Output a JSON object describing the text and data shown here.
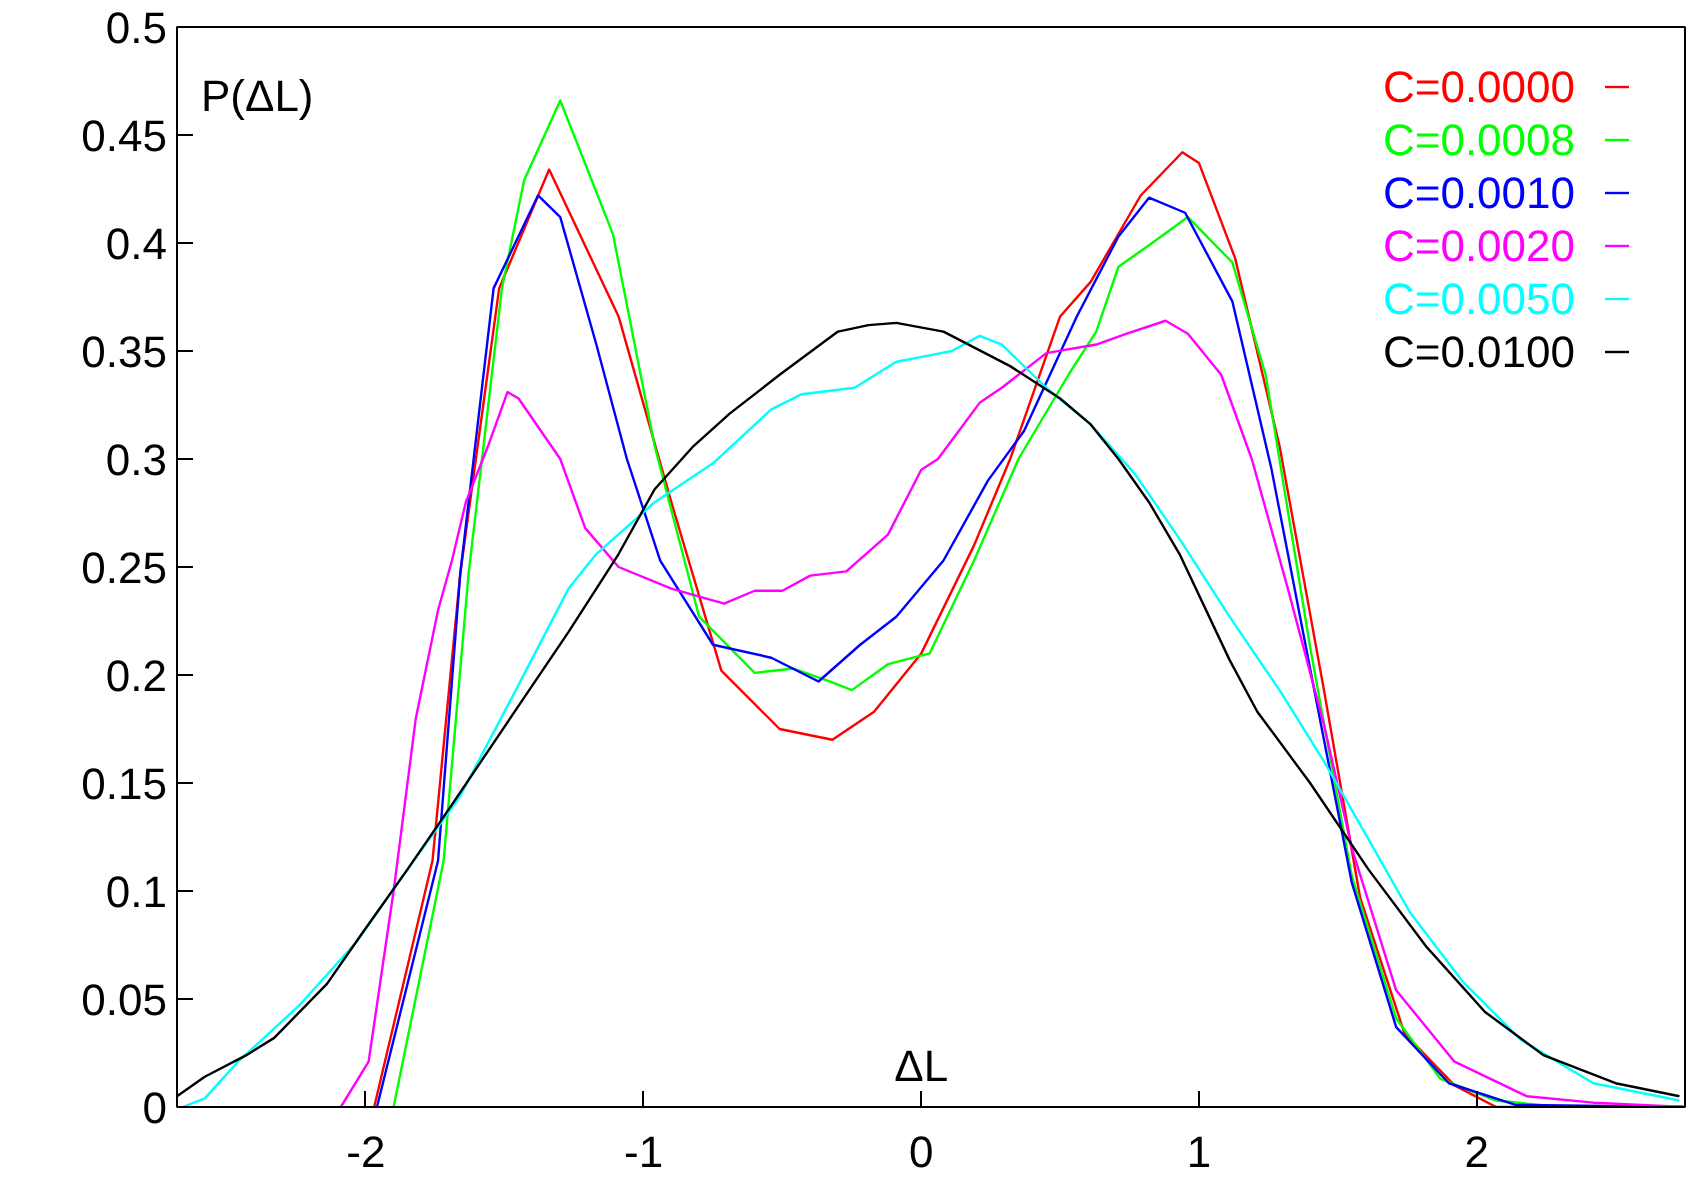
{
  "chart_data": {
    "type": "line",
    "xlabel": "ΔL",
    "ylabel": "P(ΔL)",
    "xlim": [
      -2.68,
      2.75
    ],
    "ylim": [
      0,
      0.5
    ],
    "xticks": [
      -2,
      -1,
      0,
      1,
      2
    ],
    "yticks": [
      0,
      0.05,
      0.1,
      0.15,
      0.2,
      0.25,
      0.3,
      0.35,
      0.4,
      0.45,
      0.5
    ],
    "grid": false,
    "legend": "top right",
    "marker": "none",
    "line_style": "solid",
    "series": [
      {
        "name": "C=0.0000",
        "color": "#ff0000",
        "x": [
          -1.97,
          -1.76,
          -1.66,
          -1.52,
          -1.34,
          -1.09,
          -0.9,
          -0.72,
          -0.51,
          -0.32,
          -0.17,
          0.0,
          0.19,
          0.32,
          0.5,
          0.61,
          0.79,
          0.94,
          1.0,
          1.13,
          1.29,
          1.45,
          1.58,
          1.74,
          1.92,
          2.07,
          2.75
        ],
        "values": [
          0.0,
          0.114,
          0.247,
          0.379,
          0.434,
          0.366,
          0.28,
          0.202,
          0.175,
          0.17,
          0.183,
          0.21,
          0.26,
          0.3,
          0.366,
          0.382,
          0.422,
          0.442,
          0.437,
          0.393,
          0.306,
          0.193,
          0.097,
          0.034,
          0.01,
          0.0,
          0.0
        ]
      },
      {
        "name": "C=0.0008",
        "color": "#00ff00",
        "x": [
          -1.9,
          -1.72,
          -1.63,
          -1.51,
          -1.43,
          -1.3,
          -1.11,
          -0.96,
          -0.8,
          -0.6,
          -0.46,
          -0.33,
          -0.25,
          -0.12,
          0.03,
          0.19,
          0.35,
          0.53,
          0.63,
          0.71,
          0.82,
          0.96,
          1.12,
          1.24,
          1.4,
          1.55,
          1.71,
          1.87,
          2.07,
          2.3,
          2.75
        ],
        "values": [
          0.0,
          0.114,
          0.247,
          0.379,
          0.429,
          0.466,
          0.404,
          0.306,
          0.227,
          0.201,
          0.203,
          0.197,
          0.193,
          0.205,
          0.21,
          0.253,
          0.3,
          0.339,
          0.359,
          0.389,
          0.399,
          0.412,
          0.391,
          0.339,
          0.213,
          0.107,
          0.041,
          0.013,
          0.003,
          0.0,
          0.0
        ]
      },
      {
        "name": "C=0.0010",
        "color": "#0000ff",
        "x": [
          -1.96,
          -1.74,
          -1.66,
          -1.54,
          -1.38,
          -1.3,
          -1.17,
          -1.06,
          -0.94,
          -0.75,
          -0.54,
          -0.37,
          -0.22,
          -0.09,
          0.08,
          0.24,
          0.37,
          0.56,
          0.71,
          0.82,
          0.95,
          1.12,
          1.26,
          1.4,
          1.55,
          1.71,
          1.9,
          2.14,
          2.75
        ],
        "values": [
          0.0,
          0.114,
          0.247,
          0.379,
          0.422,
          0.412,
          0.353,
          0.3,
          0.253,
          0.214,
          0.208,
          0.197,
          0.214,
          0.227,
          0.253,
          0.29,
          0.313,
          0.366,
          0.403,
          0.421,
          0.414,
          0.373,
          0.296,
          0.203,
          0.104,
          0.037,
          0.011,
          0.001,
          0.0
        ]
      },
      {
        "name": "C=0.0020",
        "color": "#ff00ff",
        "x": [
          -2.09,
          -1.99,
          -1.9,
          -1.82,
          -1.74,
          -1.69,
          -1.64,
          -1.56,
          -1.49,
          -1.45,
          -1.3,
          -1.21,
          -1.09,
          -0.9,
          -0.71,
          -0.6,
          -0.5,
          -0.4,
          -0.27,
          -0.12,
          0.0,
          0.06,
          0.21,
          0.29,
          0.45,
          0.63,
          0.74,
          0.88,
          0.96,
          1.08,
          1.19,
          1.32,
          1.45,
          1.55,
          1.71,
          1.92,
          2.18,
          2.42,
          2.75
        ],
        "values": [
          0.0,
          0.021,
          0.1,
          0.18,
          0.23,
          0.253,
          0.28,
          0.306,
          0.331,
          0.328,
          0.3,
          0.268,
          0.25,
          0.24,
          0.233,
          0.239,
          0.239,
          0.246,
          0.248,
          0.265,
          0.295,
          0.3,
          0.326,
          0.333,
          0.349,
          0.353,
          0.358,
          0.364,
          0.358,
          0.339,
          0.3,
          0.24,
          0.177,
          0.12,
          0.054,
          0.021,
          0.005,
          0.002,
          0.0
        ]
      },
      {
        "name": "C=0.0050",
        "color": "#00ffff",
        "x": [
          -2.66,
          -2.58,
          -2.46,
          -2.24,
          -2.03,
          -1.85,
          -1.66,
          -1.46,
          -1.27,
          -1.17,
          -0.96,
          -0.75,
          -0.54,
          -0.43,
          -0.24,
          -0.09,
          0.03,
          0.11,
          0.21,
          0.29,
          0.45,
          0.61,
          0.77,
          0.93,
          1.11,
          1.29,
          1.45,
          1.61,
          1.76,
          1.95,
          2.16,
          2.42,
          2.73
        ],
        "values": [
          0.0,
          0.004,
          0.021,
          0.047,
          0.077,
          0.11,
          0.144,
          0.193,
          0.24,
          0.256,
          0.28,
          0.298,
          0.323,
          0.33,
          0.333,
          0.345,
          0.348,
          0.35,
          0.357,
          0.353,
          0.333,
          0.316,
          0.293,
          0.263,
          0.227,
          0.193,
          0.16,
          0.124,
          0.09,
          0.058,
          0.031,
          0.011,
          0.003
        ]
      },
      {
        "name": "C=0.0100",
        "color": "#000000",
        "x": [
          -2.68,
          -2.58,
          -2.43,
          -2.33,
          -2.14,
          -2.01,
          -1.85,
          -1.69,
          -1.48,
          -1.27,
          -1.09,
          -0.96,
          -0.82,
          -0.69,
          -0.51,
          -0.3,
          -0.19,
          -0.09,
          0.08,
          0.32,
          0.5,
          0.61,
          0.71,
          0.82,
          0.93,
          1.11,
          1.21,
          1.4,
          1.61,
          1.82,
          2.03,
          2.24,
          2.5,
          2.73
        ],
        "values": [
          0.005,
          0.014,
          0.024,
          0.032,
          0.057,
          0.081,
          0.11,
          0.14,
          0.18,
          0.22,
          0.256,
          0.286,
          0.306,
          0.321,
          0.339,
          0.359,
          0.362,
          0.363,
          0.359,
          0.343,
          0.328,
          0.316,
          0.3,
          0.28,
          0.256,
          0.207,
          0.183,
          0.15,
          0.11,
          0.074,
          0.044,
          0.024,
          0.011,
          0.005
        ]
      }
    ]
  }
}
